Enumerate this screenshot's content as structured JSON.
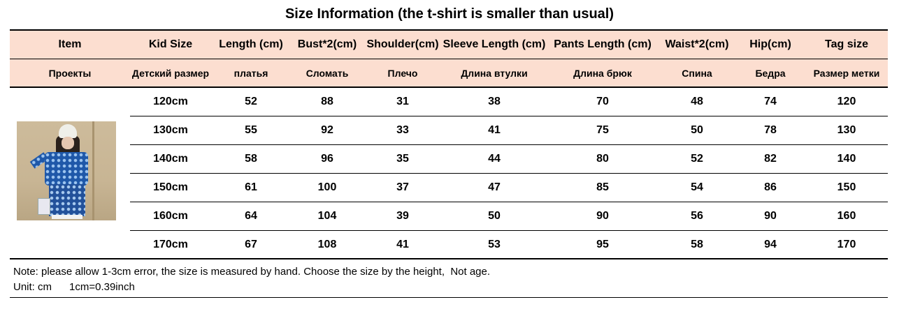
{
  "title": "Size Information (the t-shirt is smaller than usual)",
  "headers": [
    "Item",
    "Kid Size",
    "Length (cm)",
    "Bust*2(cm)",
    "Shoulder(cm)",
    "Sleeve Length (cm)",
    "Pants Length (cm)",
    "Waist*2(cm)",
    "Hip(cm)",
    "Tag size"
  ],
  "subheaders": [
    "Проекты",
    "Детский размер",
    "платья",
    "Сломать",
    "Плечо",
    "Длина втулки",
    "Длина брюк",
    "Спина",
    "Бедра",
    "Размер метки"
  ],
  "rows": [
    [
      "120cm",
      "52",
      "88",
      "31",
      "38",
      "70",
      "48",
      "74",
      "120"
    ],
    [
      "130cm",
      "55",
      "92",
      "33",
      "41",
      "75",
      "50",
      "78",
      "130"
    ],
    [
      "140cm",
      "58",
      "96",
      "35",
      "44",
      "80",
      "52",
      "82",
      "140"
    ],
    [
      "150cm",
      "61",
      "100",
      "37",
      "47",
      "85",
      "54",
      "86",
      "150"
    ],
    [
      "160cm",
      "64",
      "104",
      "39",
      "50",
      "90",
      "56",
      "90",
      "160"
    ],
    [
      "170cm",
      "67",
      "108",
      "41",
      "53",
      "95",
      "58",
      "94",
      "170"
    ]
  ],
  "note_line1": "Note: please allow 1-3cm error, the size is measured by hand. Choose the size by the height,  Not age.",
  "note_line2": "Unit: cm      1cm=0.39inch",
  "colors": {
    "header_band": "#fcded0",
    "rule": "#000000"
  },
  "product_photo": "kid-model-photo"
}
